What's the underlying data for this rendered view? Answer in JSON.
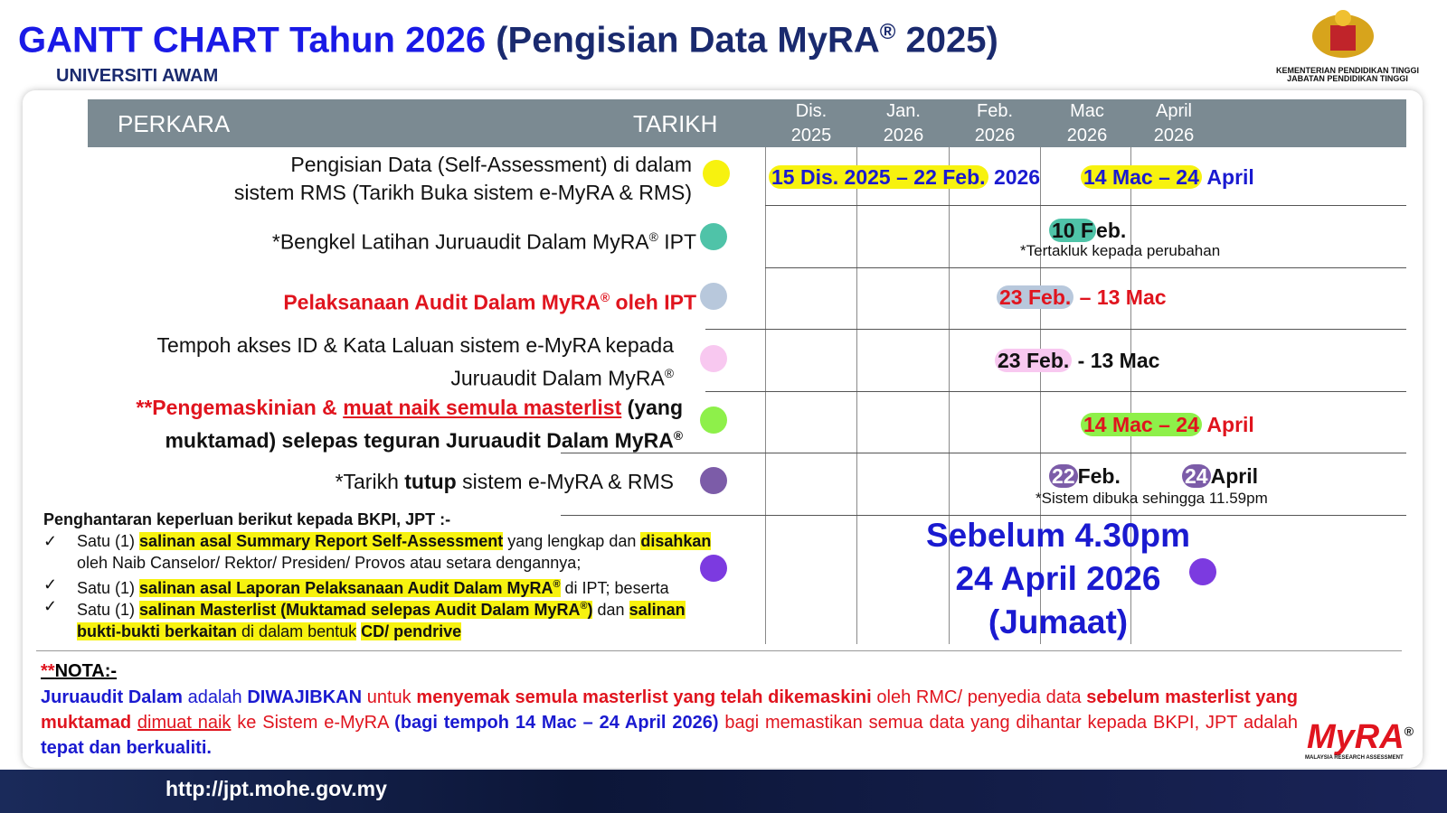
{
  "header": {
    "title_main": "GANTT CHART Tahun 2026",
    "title_sub": "(Pengisian Data MyRA",
    "title_reg": "®",
    "title_end": "2025)",
    "subtitle": "UNIVERSITI AWAM",
    "ministry": [
      "KEMENTERIAN PENDIDIKAN TINGGI",
      "JABATAN PENDIDIKAN TINGGI"
    ]
  },
  "table": {
    "headers": {
      "item": "PERKARA",
      "date": "TARIKH",
      "months": [
        {
          "month": "Dis.",
          "year": "2025"
        },
        {
          "month": "Jan.",
          "year": "2026"
        },
        {
          "month": "Feb.",
          "year": "2026"
        },
        {
          "month": "Mac",
          "year": "2026"
        },
        {
          "month": "April",
          "year": "2026"
        }
      ]
    },
    "rows": [
      {
        "item": [
          "Pengisian Data (Self-Assessment) di dalam",
          "sistem RMS (Tarikh Buka sistem e-MyRA & RMS)"
        ],
        "dates": [
          "15 Dis. 2025 – 22 Feb.",
          "2026",
          "14 Mac – 24",
          "April"
        ]
      },
      {
        "item": [
          "*Bengkel Latihan Juruaudit Dalam MyRA",
          "®",
          "IPT"
        ],
        "dates": [
          "10 F",
          "eb."
        ],
        "note": "*Tertakluk kepada perubahan"
      },
      {
        "item": [
          "Pelaksanaan Audit Dalam MyRA",
          "®",
          "oleh IPT"
        ],
        "dates": [
          "23 Feb.",
          "– 13 Mac"
        ]
      },
      {
        "item": [
          "Tempoh akses ID & Kata Laluan sistem e-MyRA kepada",
          "Juruaudit Dalam MyRA",
          "®"
        ],
        "dates": [
          "23 Feb.",
          "- 13 Mac"
        ]
      },
      {
        "item": [
          "**Pengemaskinian & ",
          "muat naik semula masterlist",
          "(yang",
          "muktamad) selepas teguran Juruaudit Dalam MyRA",
          "®"
        ],
        "dates": [
          "14 Mac – 24",
          "April"
        ]
      },
      {
        "item": [
          "*Tarikh",
          "tutup",
          "sistem e-MyRA & RMS"
        ],
        "dates": [
          "22",
          "Feb.",
          "24",
          "April"
        ],
        "note": "*Sistem dibuka sehingga 11.59pm"
      }
    ]
  },
  "submission": {
    "heading": "Penghantaran keperluan berikut kepada BKPI, JPT :-",
    "items": [
      [
        "Satu (1)",
        "salinan asal Summary Report Self-Assessment",
        "yang lengkap dan",
        "disahkan",
        "oleh Naib Canselor/ Rektor/ Presiden/ Provos atau setara dengannya;"
      ],
      [
        "Satu (1)",
        "salinan asal Laporan Pelaksanaan Audit Dalam MyRA",
        "®",
        "di IPT; beserta"
      ],
      [
        "Satu (1)",
        "salinan Masterlist (Muktamad selepas Audit Dalam MyRA",
        "®",
        ")",
        "dan",
        "salinan",
        "bukti-bukti berkaitan",
        "di dalam bentuk",
        "CD/ pendrive"
      ]
    ],
    "deadline": [
      "Sebelum 4.30pm",
      "24 April 2026",
      "(Jumaat)"
    ]
  },
  "nota": {
    "label": [
      "**",
      "NOTA:-"
    ],
    "text": [
      "Juruaudit Dalam",
      "adalah",
      "DIWAJIBKAN",
      "untuk",
      "menyemak semula masterlist yang telah dikemaskini",
      "oleh RMC/ penyedia data",
      "sebelum masterlist yang muktamad",
      "dimuat naik",
      "ke Sistem e-MyRA",
      "(bagi tempoh 14 Mac – 24 April 2026)",
      "bagi memastikan semua data yang dihantar kepada BKPI, JPT adalah",
      "tepat dan berkualiti."
    ]
  },
  "footer": {
    "url": "http://jpt.mohe.gov.my",
    "logo": "MyRA",
    "logo_reg": "®",
    "logo_sub": "MALAYSIA RESEARCH ASSESSMENT"
  }
}
